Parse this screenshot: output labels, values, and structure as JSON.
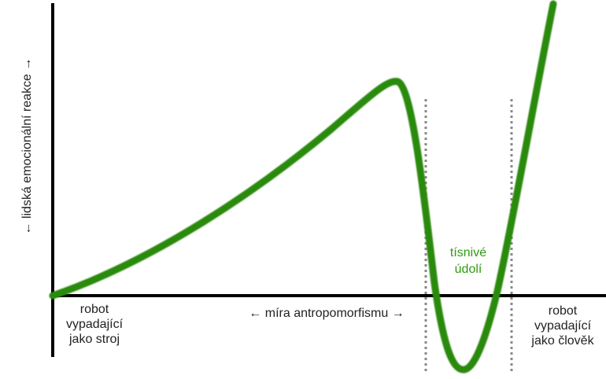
{
  "y_axis_label": "← lidská emocionální reakce →",
  "x_axis_label": "← míra antropomorfismu →",
  "left_label": [
    "robot",
    "vypadající",
    "jako stroj"
  ],
  "right_label": [
    "robot",
    "vypadající",
    "jako člověk"
  ],
  "valley_label": [
    "tísnivé",
    "údolí"
  ],
  "colors": {
    "curve": "#2a8a0a",
    "valley_text": "#2f9a12",
    "axes": "#000000",
    "guides": "#888888"
  }
}
